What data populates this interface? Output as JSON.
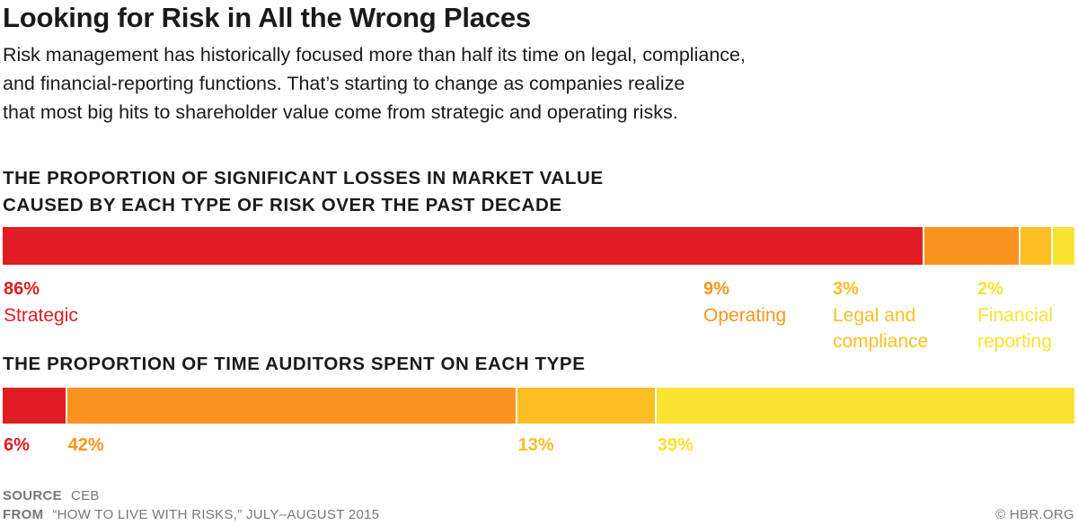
{
  "title": "Looking for Risk in All the Wrong Places",
  "subtitle_lines": [
    "Risk management has historically focused more than half its time on legal, compliance,",
    "and financial-reporting functions. That’s starting to change as companies realize",
    "that most big hits to shareholder value come from strategic and operating risks."
  ],
  "source": {
    "label": "SOURCE",
    "value": "CEB"
  },
  "from": {
    "label": "FROM",
    "value": "“HOW TO LIVE WITH RISKS,” JULY–AUGUST 2015"
  },
  "copyright": "© HBR.ORG",
  "colors": {
    "strategic": "#e01c24",
    "operating": "#fb941e",
    "legal": "#fbbf24",
    "financial": "#fae230"
  },
  "chart_data": [
    {
      "type": "bar",
      "orientation": "horizontal-stacked",
      "title_lines": [
        "THE PROPORTION OF SIGNIFICANT LOSSES IN MARKET VALUE",
        "CAUSED BY EACH TYPE OF RISK OVER THE PAST DECADE"
      ],
      "series": [
        {
          "name": "Strategic",
          "value": 86,
          "label": "86%",
          "color": "#e01c24",
          "category_lines": [
            "Strategic"
          ]
        },
        {
          "name": "Operating",
          "value": 9,
          "label": "9%",
          "color": "#fb941e",
          "category_lines": [
            "Operating"
          ]
        },
        {
          "name": "Legal and compliance",
          "value": 3,
          "label": "3%",
          "color": "#fbbf24",
          "category_lines": [
            "Legal and",
            "compliance"
          ]
        },
        {
          "name": "Financial reporting",
          "value": 2,
          "label": "2%",
          "color": "#fae230",
          "category_lines": [
            "Financial",
            "reporting"
          ]
        }
      ]
    },
    {
      "type": "bar",
      "orientation": "horizontal-stacked",
      "title_lines": [
        "THE PROPORTION OF TIME AUDITORS SPENT ON EACH TYPE"
      ],
      "series": [
        {
          "name": "Strategic",
          "value": 6,
          "label": "6%",
          "color": "#e01c24"
        },
        {
          "name": "Operating",
          "value": 42,
          "label": "42%",
          "color": "#fb941e"
        },
        {
          "name": "Legal and compliance",
          "value": 13,
          "label": "13%",
          "color": "#fbbf24"
        },
        {
          "name": "Financial reporting",
          "value": 39,
          "label": "39%",
          "color": "#fae230"
        }
      ]
    }
  ]
}
